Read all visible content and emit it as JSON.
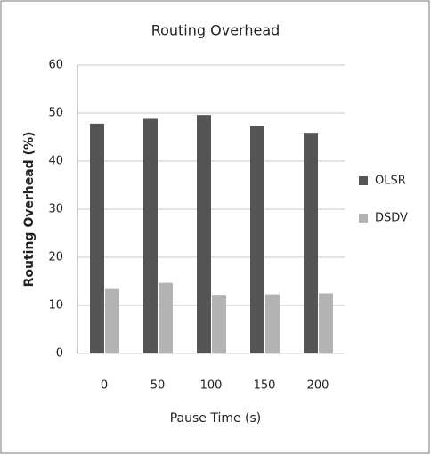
{
  "chart_data": {
    "type": "bar",
    "title": "Routing Overhead",
    "x_label": "Pause Time (s)",
    "y_label": "Routing Overhead (%)",
    "categories": [
      "0",
      "50",
      "100",
      "150",
      "200"
    ],
    "series": [
      {
        "name": "OLSR",
        "color": "#555555",
        "values": [
          47.8,
          48.8,
          49.6,
          47.3,
          45.9
        ]
      },
      {
        "name": "DSDV",
        "color": "#b3b3b3",
        "values": [
          13.4,
          14.7,
          12.2,
          12.3,
          12.5
        ]
      }
    ],
    "ylim": [
      0,
      60
    ],
    "yticks": [
      0,
      10,
      20,
      30,
      40,
      50,
      60
    ],
    "grid": true,
    "legend": "right"
  }
}
